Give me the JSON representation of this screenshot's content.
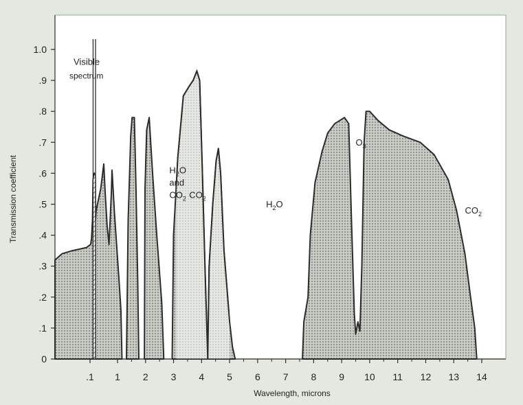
{
  "chart_data": {
    "type": "area",
    "title": "",
    "xlabel": "Wavelength, microns",
    "ylabel": "Transmission coefficient",
    "ylim": [
      0,
      1.0
    ],
    "x_axis_note": "nonlinear axis: 0 to 1 compressed on the left, 1 to 14 linear",
    "x_ticks": [
      {
        "value": 0.1,
        "label": ".1"
      },
      {
        "value": 1,
        "label": "1"
      },
      {
        "value": 2,
        "label": "2"
      },
      {
        "value": 3,
        "label": "3"
      },
      {
        "value": 4,
        "label": "4"
      },
      {
        "value": 5,
        "label": "5"
      },
      {
        "value": 6,
        "label": "6"
      },
      {
        "value": 7,
        "label": "7"
      },
      {
        "value": 8,
        "label": "8"
      },
      {
        "value": 9,
        "label": "9"
      },
      {
        "value": 10,
        "label": "10"
      },
      {
        "value": 11,
        "label": "11"
      },
      {
        "value": 12,
        "label": "12"
      },
      {
        "value": 13,
        "label": "13"
      },
      {
        "value": 14,
        "label": "14"
      }
    ],
    "y_ticks": [
      {
        "value": 0,
        "label": "0"
      },
      {
        "value": 0.1,
        "label": ".1"
      },
      {
        "value": 0.2,
        "label": ".2"
      },
      {
        "value": 0.3,
        "label": ".3"
      },
      {
        "value": 0.4,
        "label": ".4"
      },
      {
        "value": 0.5,
        "label": ".5"
      },
      {
        "value": 0.6,
        "label": ".6"
      },
      {
        "value": 0.7,
        "label": ".7"
      },
      {
        "value": 0.8,
        "label": ".8"
      },
      {
        "value": 0.9,
        "label": ".9"
      },
      {
        "value": 1.0,
        "label": "1.0"
      }
    ],
    "bands": [
      {
        "id": "uv-visible-near-ir",
        "pattern": "dots",
        "points": [
          [
            0.0,
            0.32
          ],
          [
            0.02,
            0.34
          ],
          [
            0.05,
            0.35
          ],
          [
            0.09,
            0.36
          ],
          [
            0.12,
            0.37
          ],
          [
            0.15,
            0.39
          ],
          [
            0.18,
            0.45
          ],
          [
            0.2,
            0.58
          ],
          [
            0.24,
            0.6
          ],
          [
            0.27,
            0.58
          ],
          [
            0.28,
            0.45
          ],
          [
            0.3,
            0.48
          ],
          [
            0.45,
            0.55
          ],
          [
            0.55,
            0.63
          ],
          [
            0.6,
            0.53
          ],
          [
            0.66,
            0.43
          ],
          [
            0.72,
            0.37
          ],
          [
            0.76,
            0.45
          ],
          [
            0.8,
            0.54
          ],
          [
            0.82,
            0.61
          ],
          [
            0.9,
            0.47
          ],
          [
            1.05,
            0.26
          ],
          [
            1.12,
            0.16
          ],
          [
            1.16,
            0.0
          ],
          [
            0.0,
            0.0
          ]
        ]
      },
      {
        "id": "band-1-6",
        "pattern": "dots",
        "points": [
          [
            1.32,
            0.0
          ],
          [
            1.38,
            0.45
          ],
          [
            1.47,
            0.72
          ],
          [
            1.52,
            0.78
          ],
          [
            1.6,
            0.78
          ],
          [
            1.66,
            0.55
          ],
          [
            1.72,
            0.25
          ],
          [
            1.76,
            0.0
          ]
        ]
      },
      {
        "id": "band-2-2",
        "pattern": "dots",
        "points": [
          [
            1.96,
            0.0
          ],
          [
            1.98,
            0.55
          ],
          [
            2.04,
            0.74
          ],
          [
            2.13,
            0.78
          ],
          [
            2.25,
            0.6
          ],
          [
            2.4,
            0.4
          ],
          [
            2.58,
            0.18
          ],
          [
            2.65,
            0.0
          ]
        ]
      },
      {
        "id": "band-3-4",
        "pattern": "dots",
        "points": [
          [
            2.95,
            0.0
          ],
          [
            3.0,
            0.4
          ],
          [
            3.15,
            0.65
          ],
          [
            3.35,
            0.85
          ],
          [
            3.55,
            0.88
          ],
          [
            3.7,
            0.9
          ],
          [
            3.83,
            0.93
          ],
          [
            3.93,
            0.9
          ],
          [
            4.03,
            0.6
          ],
          [
            4.12,
            0.3
          ],
          [
            4.22,
            0.0
          ]
        ]
      },
      {
        "id": "band-4-8",
        "pattern": "dots",
        "points": [
          [
            4.22,
            0.0
          ],
          [
            4.27,
            0.3
          ],
          [
            4.4,
            0.5
          ],
          [
            4.52,
            0.64
          ],
          [
            4.6,
            0.68
          ],
          [
            4.68,
            0.6
          ],
          [
            4.8,
            0.35
          ],
          [
            5.0,
            0.12
          ],
          [
            5.1,
            0.04
          ],
          [
            5.2,
            0.0
          ]
        ]
      },
      {
        "id": "band-8-13",
        "pattern": "dots",
        "points": [
          [
            7.6,
            0.0
          ],
          [
            7.65,
            0.12
          ],
          [
            7.8,
            0.2
          ],
          [
            7.88,
            0.4
          ],
          [
            8.05,
            0.57
          ],
          [
            8.3,
            0.67
          ],
          [
            8.5,
            0.73
          ],
          [
            8.75,
            0.76
          ],
          [
            9.1,
            0.78
          ],
          [
            9.25,
            0.76
          ],
          [
            9.35,
            0.45
          ],
          [
            9.45,
            0.15
          ],
          [
            9.5,
            0.08
          ],
          [
            9.58,
            0.12
          ],
          [
            9.65,
            0.09
          ],
          [
            9.72,
            0.3
          ],
          [
            9.8,
            0.7
          ],
          [
            9.87,
            0.8
          ],
          [
            10.0,
            0.8
          ],
          [
            10.3,
            0.77
          ],
          [
            10.7,
            0.74
          ],
          [
            11.2,
            0.72
          ],
          [
            11.8,
            0.7
          ],
          [
            12.3,
            0.66
          ],
          [
            12.8,
            0.58
          ],
          [
            13.1,
            0.48
          ],
          [
            13.4,
            0.34
          ],
          [
            13.6,
            0.2
          ],
          [
            13.75,
            0.1
          ],
          [
            13.82,
            0.0
          ]
        ]
      }
    ],
    "visible_spectrum": {
      "x_start": 0.2,
      "x_end": 0.28,
      "max": 0.6,
      "pattern": "hatch"
    },
    "lighter_region": {
      "x_start": 3.1,
      "x_end": 5.0
    },
    "annotations": [
      {
        "id": "visible",
        "lines": [
          "Visible",
          "spectrum"
        ],
        "x": 0.28,
        "y": 0.95
      },
      {
        "id": "h2o-co2",
        "text": "H2O and CO2",
        "x": 2.85,
        "y": 0.6
      },
      {
        "id": "co2-short",
        "text": "CO2",
        "x": 4.0,
        "y": 0.52
      },
      {
        "id": "h2o",
        "text": "H2O",
        "x": 6.3,
        "y": 0.49
      },
      {
        "id": "o3",
        "text": "O3",
        "x": 9.5,
        "y": 0.69
      },
      {
        "id": "co2-long",
        "text": "CO2",
        "x": 13.4,
        "y": 0.47
      }
    ],
    "grid": false,
    "colors": {
      "fill": "#c9cdc5",
      "dots": "#4a4d48",
      "light_fill": "#e6e9e3",
      "light_dots": "#9ea29b",
      "line": "#2b2b2b",
      "plot_bg": "#ffffff",
      "page_bg": "#e3e8e1"
    }
  }
}
